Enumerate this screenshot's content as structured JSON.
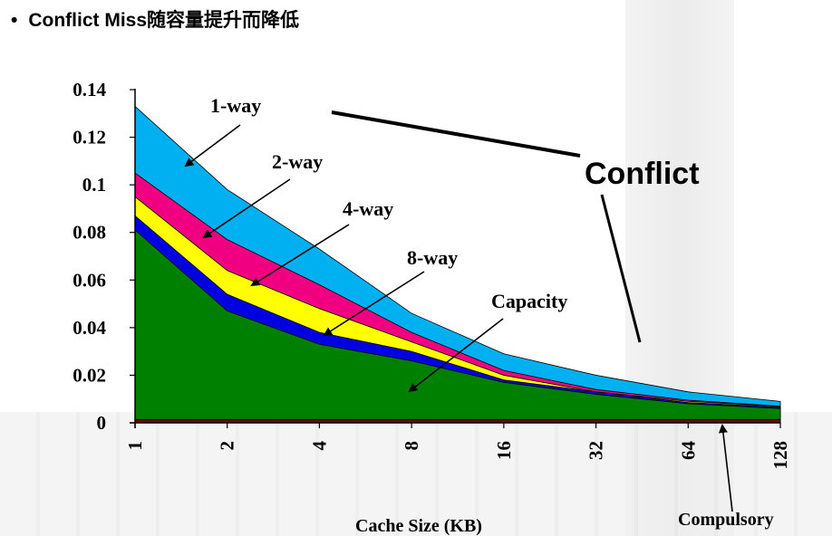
{
  "slide": {
    "bullet_text": "Conflict Miss随容量提升而降低"
  },
  "chart_data": {
    "type": "area",
    "title": "",
    "xlabel": "Cache Size (KB)",
    "ylabel": "",
    "categories": [
      "1",
      "2",
      "4",
      "8",
      "16",
      "32",
      "64",
      "128"
    ],
    "ylim": [
      0,
      0.14
    ],
    "yticks": [
      "0.14",
      "0.12",
      "0.1",
      "0.08",
      "0.06",
      "0.04",
      "0.02",
      "0"
    ],
    "series": [
      {
        "name": "Compulsory",
        "color": "#7f0000",
        "values": [
          0.0014,
          0.0014,
          0.0014,
          0.0014,
          0.0014,
          0.0014,
          0.0014,
          0.0014
        ]
      },
      {
        "name": "Capacity",
        "color": "#008000",
        "values": [
          0.081,
          0.047,
          0.033,
          0.026,
          0.017,
          0.012,
          0.008,
          0.006
        ]
      },
      {
        "name": "8-way",
        "color": "#0000e0",
        "values": [
          0.087,
          0.054,
          0.038,
          0.03,
          0.018,
          0.013,
          0.0085,
          0.0065
        ]
      },
      {
        "name": "4-way",
        "color": "#ffff00",
        "values": [
          0.095,
          0.064,
          0.048,
          0.034,
          0.02,
          0.013,
          0.009,
          0.0068
        ]
      },
      {
        "name": "2-way",
        "color": "#f00080",
        "values": [
          0.105,
          0.077,
          0.058,
          0.038,
          0.022,
          0.014,
          0.0095,
          0.007
        ]
      },
      {
        "name": "1-way",
        "color": "#00b0f0",
        "values": [
          0.133,
          0.098,
          0.073,
          0.046,
          0.029,
          0.02,
          0.013,
          0.009
        ]
      }
    ],
    "annotations": {
      "one_way": "1-way",
      "two_way": "2-way",
      "four_way": "4-way",
      "eight_way": "8-way",
      "capacity": "Capacity",
      "conflict": "Conflict",
      "compulsory": "Compulsory"
    }
  }
}
